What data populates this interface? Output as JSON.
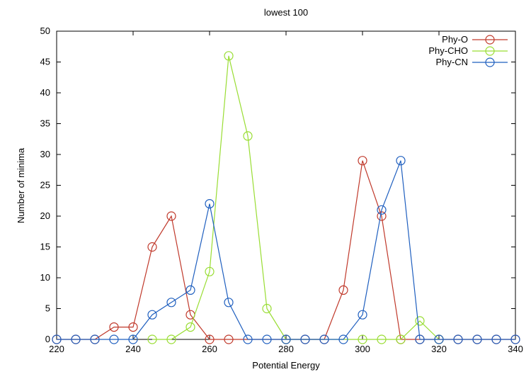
{
  "chart_data": {
    "type": "line",
    "title": "lowest 100",
    "xlabel": "Potential Energy",
    "ylabel": "Number of minima",
    "xlim": [
      220,
      340
    ],
    "ylim": [
      0,
      50
    ],
    "xticks": [
      220,
      240,
      260,
      280,
      300,
      320,
      340
    ],
    "yticks": [
      0,
      5,
      10,
      15,
      20,
      25,
      30,
      35,
      40,
      45,
      50
    ],
    "grid": false,
    "legend_position": "top-right",
    "series": [
      {
        "name": "Phy-O",
        "color": "#c0392b",
        "x": [
          220,
          225,
          230,
          235,
          240,
          245,
          250,
          255,
          260,
          265,
          270,
          275,
          280,
          285,
          290,
          295,
          300,
          305,
          310,
          315,
          320,
          325,
          330,
          335,
          340
        ],
        "y": [
          0,
          0,
          0,
          2,
          2,
          15,
          20,
          4,
          0,
          0,
          0,
          0,
          0,
          0,
          0,
          8,
          29,
          20,
          0,
          0,
          0,
          0,
          0,
          0,
          0
        ],
        "x_hidden_mask": [
          0,
          0,
          0,
          0,
          0,
          0,
          0,
          0,
          0,
          0,
          1,
          1,
          0,
          0,
          0,
          0,
          0,
          0,
          0,
          0,
          0,
          0,
          0,
          0,
          0
        ]
      },
      {
        "name": "Phy-CHO",
        "color": "#99dd33",
        "x": [
          245,
          250,
          255,
          260,
          265,
          270,
          275,
          280,
          300,
          305,
          310,
          315,
          320
        ],
        "y": [
          0,
          0,
          2,
          11,
          46,
          33,
          5,
          0,
          0,
          0,
          0,
          3,
          0
        ]
      },
      {
        "name": "Phy-CN",
        "color": "#1f5fbf",
        "x": [
          220,
          225,
          230,
          235,
          240,
          245,
          250,
          255,
          260,
          265,
          270,
          275,
          280,
          285,
          290,
          295,
          300,
          305,
          310,
          315,
          320,
          325,
          330,
          335,
          340
        ],
        "y": [
          0,
          0,
          0,
          0,
          0,
          4,
          6,
          8,
          22,
          6,
          0,
          0,
          0,
          0,
          0,
          0,
          4,
          21,
          29,
          0,
          0,
          0,
          0,
          0,
          0
        ]
      }
    ]
  }
}
